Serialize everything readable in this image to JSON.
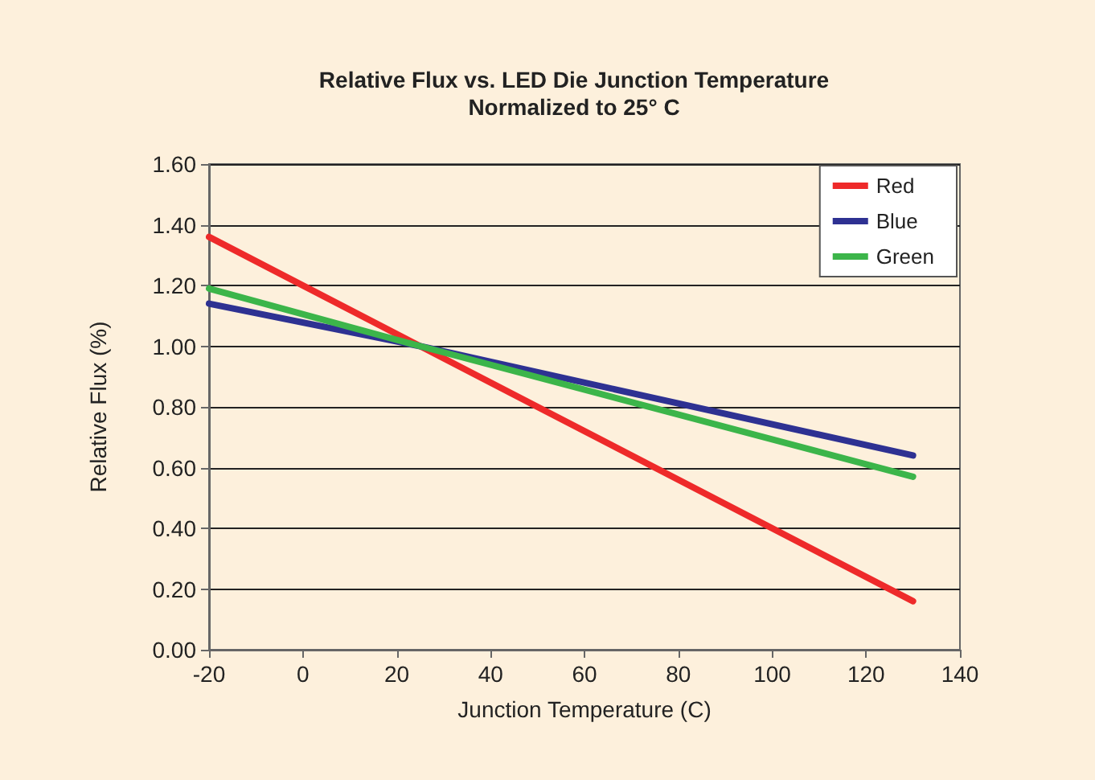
{
  "chart_data": {
    "type": "line",
    "title": "Relative Flux vs. LED Die Junction Temperature\nNormalized to 25° C",
    "xlabel": "Junction Temperature (C)",
    "ylabel": "Relative Flux (%)",
    "x": [
      -20,
      25,
      130
    ],
    "series": [
      {
        "name": "Red",
        "color": "#ee2a2a",
        "values": [
          1.36,
          1.0,
          0.16
        ]
      },
      {
        "name": "Blue",
        "color": "#2e3192",
        "values": [
          1.14,
          1.0,
          0.64
        ]
      },
      {
        "name": "Green",
        "color": "#3cb54a",
        "values": [
          1.19,
          1.0,
          0.57
        ]
      }
    ],
    "xlim": [
      -20,
      140
    ],
    "xticks": [
      -20,
      0,
      20,
      40,
      60,
      80,
      100,
      120,
      140
    ],
    "ylim": [
      0,
      1.6
    ],
    "yticks": [
      {
        "value": 0,
        "label": "0.00"
      },
      {
        "value": 0.2,
        "label": "0.20"
      },
      {
        "value": 0.4,
        "label": "0.40"
      },
      {
        "value": 0.6,
        "label": "0.60"
      },
      {
        "value": 0.8,
        "label": "0.80"
      },
      {
        "value": 1.0,
        "label": "1.00"
      },
      {
        "value": 1.2,
        "label": "1.20"
      },
      {
        "value": 1.4,
        "label": "1.40"
      },
      {
        "value": 1.6,
        "label": "1.60"
      }
    ],
    "grid": "y",
    "legend": "top right",
    "marker": "none",
    "line_style": "solid"
  }
}
